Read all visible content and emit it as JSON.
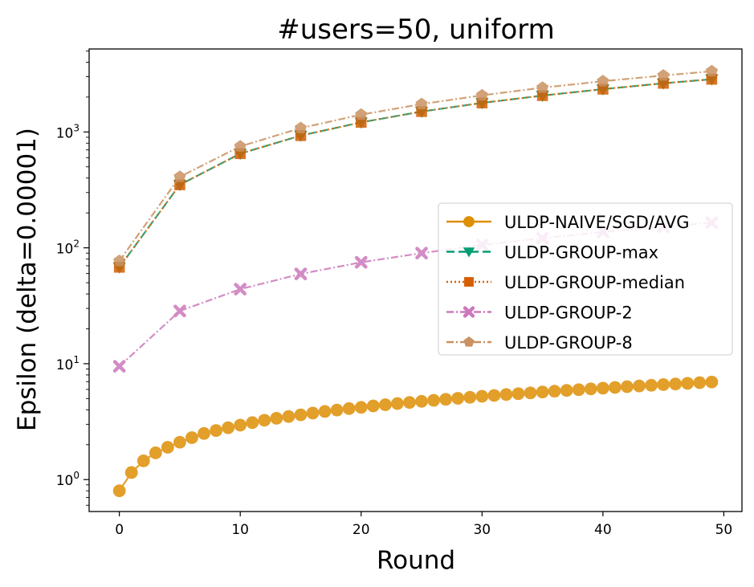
{
  "chart_data": {
    "type": "line",
    "title": "#users=50, uniform",
    "xlabel": "Round",
    "ylabel": "Epsilon (delta=0.00001)",
    "xlim": [
      -2.5,
      51.5
    ],
    "ylim": [
      0.53,
      5200
    ],
    "yscale": "log",
    "grid": false,
    "legend_position": "center-right",
    "x_ticks": [
      0,
      10,
      20,
      30,
      40,
      50
    ],
    "x_tick_labels": [
      "0",
      "10",
      "20",
      "30",
      "40",
      "50"
    ],
    "y_ticks": [
      1,
      10,
      100,
      1000
    ],
    "y_tick_labels": [
      "10^0",
      "10^1",
      "10^2",
      "10^3"
    ],
    "series": [
      {
        "name": "ULDP-NAIVE/SGD/AVG",
        "color": "#de8f05",
        "marker": "circle",
        "linestyle": "solid",
        "x": [
          0,
          1,
          2,
          3,
          4,
          5,
          6,
          7,
          8,
          9,
          10,
          11,
          12,
          13,
          14,
          15,
          16,
          17,
          18,
          19,
          20,
          21,
          22,
          23,
          24,
          25,
          26,
          27,
          28,
          29,
          30,
          31,
          32,
          33,
          34,
          35,
          36,
          37,
          38,
          39,
          40,
          41,
          42,
          43,
          44,
          45,
          46,
          47,
          48,
          49
        ],
        "values": [
          0.8,
          1.15,
          1.45,
          1.7,
          1.9,
          2.1,
          2.3,
          2.5,
          2.65,
          2.8,
          2.95,
          3.1,
          3.25,
          3.38,
          3.5,
          3.62,
          3.75,
          3.87,
          3.98,
          4.1,
          4.2,
          4.32,
          4.42,
          4.53,
          4.63,
          4.73,
          4.83,
          4.93,
          5.03,
          5.13,
          5.23,
          5.32,
          5.42,
          5.51,
          5.6,
          5.7,
          5.79,
          5.88,
          5.97,
          6.06,
          6.15,
          6.24,
          6.33,
          6.42,
          6.51,
          6.6,
          6.68,
          6.77,
          6.86,
          6.95
        ]
      },
      {
        "name": "ULDP-GROUP-max",
        "color": "#029e73",
        "marker": "triangle-down",
        "linestyle": "dashed",
        "x": [
          0,
          5,
          10,
          15,
          20,
          25,
          30,
          35,
          40,
          45,
          49
        ],
        "values": [
          68,
          350,
          650,
          930,
          1210,
          1500,
          1780,
          2060,
          2340,
          2630,
          2850
        ]
      },
      {
        "name": "ULDP-GROUP-median",
        "color": "#d55e00",
        "marker": "square",
        "linestyle": "dotted",
        "x": [
          0,
          5,
          10,
          15,
          20,
          25,
          30,
          35,
          40,
          45,
          49
        ],
        "values": [
          68,
          350,
          650,
          930,
          1210,
          1500,
          1780,
          2060,
          2340,
          2630,
          2850
        ]
      },
      {
        "name": "ULDP-GROUP-2",
        "color": "#cc78bc",
        "marker": "x",
        "linestyle": "dashdot",
        "x": [
          0,
          5,
          10,
          15,
          20,
          25,
          30,
          35,
          40,
          45,
          49
        ],
        "values": [
          9.5,
          28.5,
          44,
          59.5,
          75,
          90,
          106,
          121,
          137,
          152,
          165
        ]
      },
      {
        "name": "ULDP-GROUP-8",
        "color": "#ca9161",
        "marker": "pentagon",
        "linestyle": "dashdot",
        "x": [
          0,
          5,
          10,
          15,
          20,
          25,
          30,
          35,
          40,
          45,
          49
        ],
        "values": [
          77,
          410,
          750,
          1080,
          1410,
          1740,
          2070,
          2410,
          2740,
          3070,
          3340
        ]
      }
    ]
  }
}
